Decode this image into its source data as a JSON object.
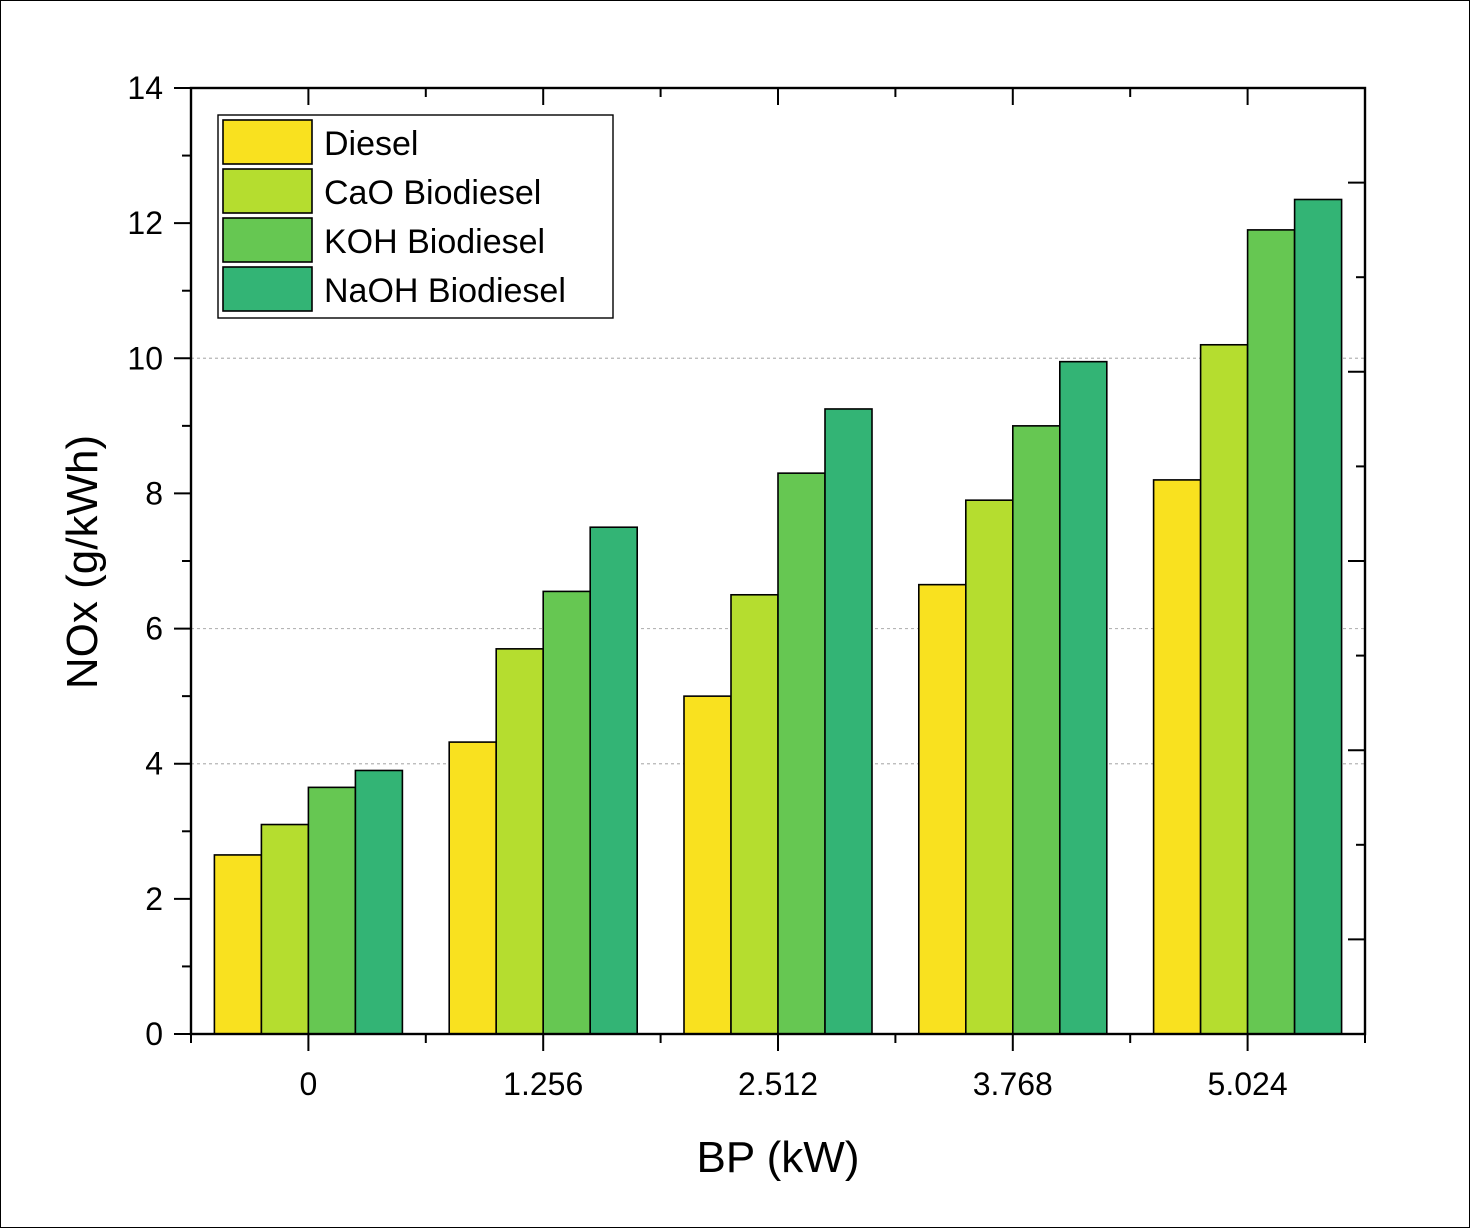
{
  "chart_data": {
    "type": "bar",
    "title": "",
    "xlabel": "BP (kW)",
    "ylabel": "NOx (g/kWh)",
    "categories": [
      "0",
      "1.256",
      "2.512",
      "3.768",
      "5.024"
    ],
    "ylim": [
      0,
      14
    ],
    "yticks": [
      "0",
      "2",
      "4",
      "6",
      "8",
      "10",
      "12",
      "14"
    ],
    "ytick_values": [
      0,
      2,
      4,
      6,
      8,
      10,
      12,
      14
    ],
    "gridlines": [
      4,
      6,
      10
    ],
    "legend_position": "top-left",
    "series": [
      {
        "name": "Diesel",
        "color": "#f9e11f",
        "values": [
          2.65,
          4.32,
          5.0,
          6.65,
          8.2
        ]
      },
      {
        "name": "CaO Biodiesel",
        "color": "#b5dd2f",
        "values": [
          3.1,
          5.7,
          6.5,
          7.9,
          10.2
        ]
      },
      {
        "name": "KOH Biodiesel",
        "color": "#66c752",
        "values": [
          3.65,
          6.55,
          8.3,
          9.0,
          11.9
        ]
      },
      {
        "name": "NaOH Biodiesel",
        "color": "#33b475",
        "values": [
          3.9,
          7.5,
          9.25,
          9.95,
          12.35
        ]
      }
    ]
  }
}
